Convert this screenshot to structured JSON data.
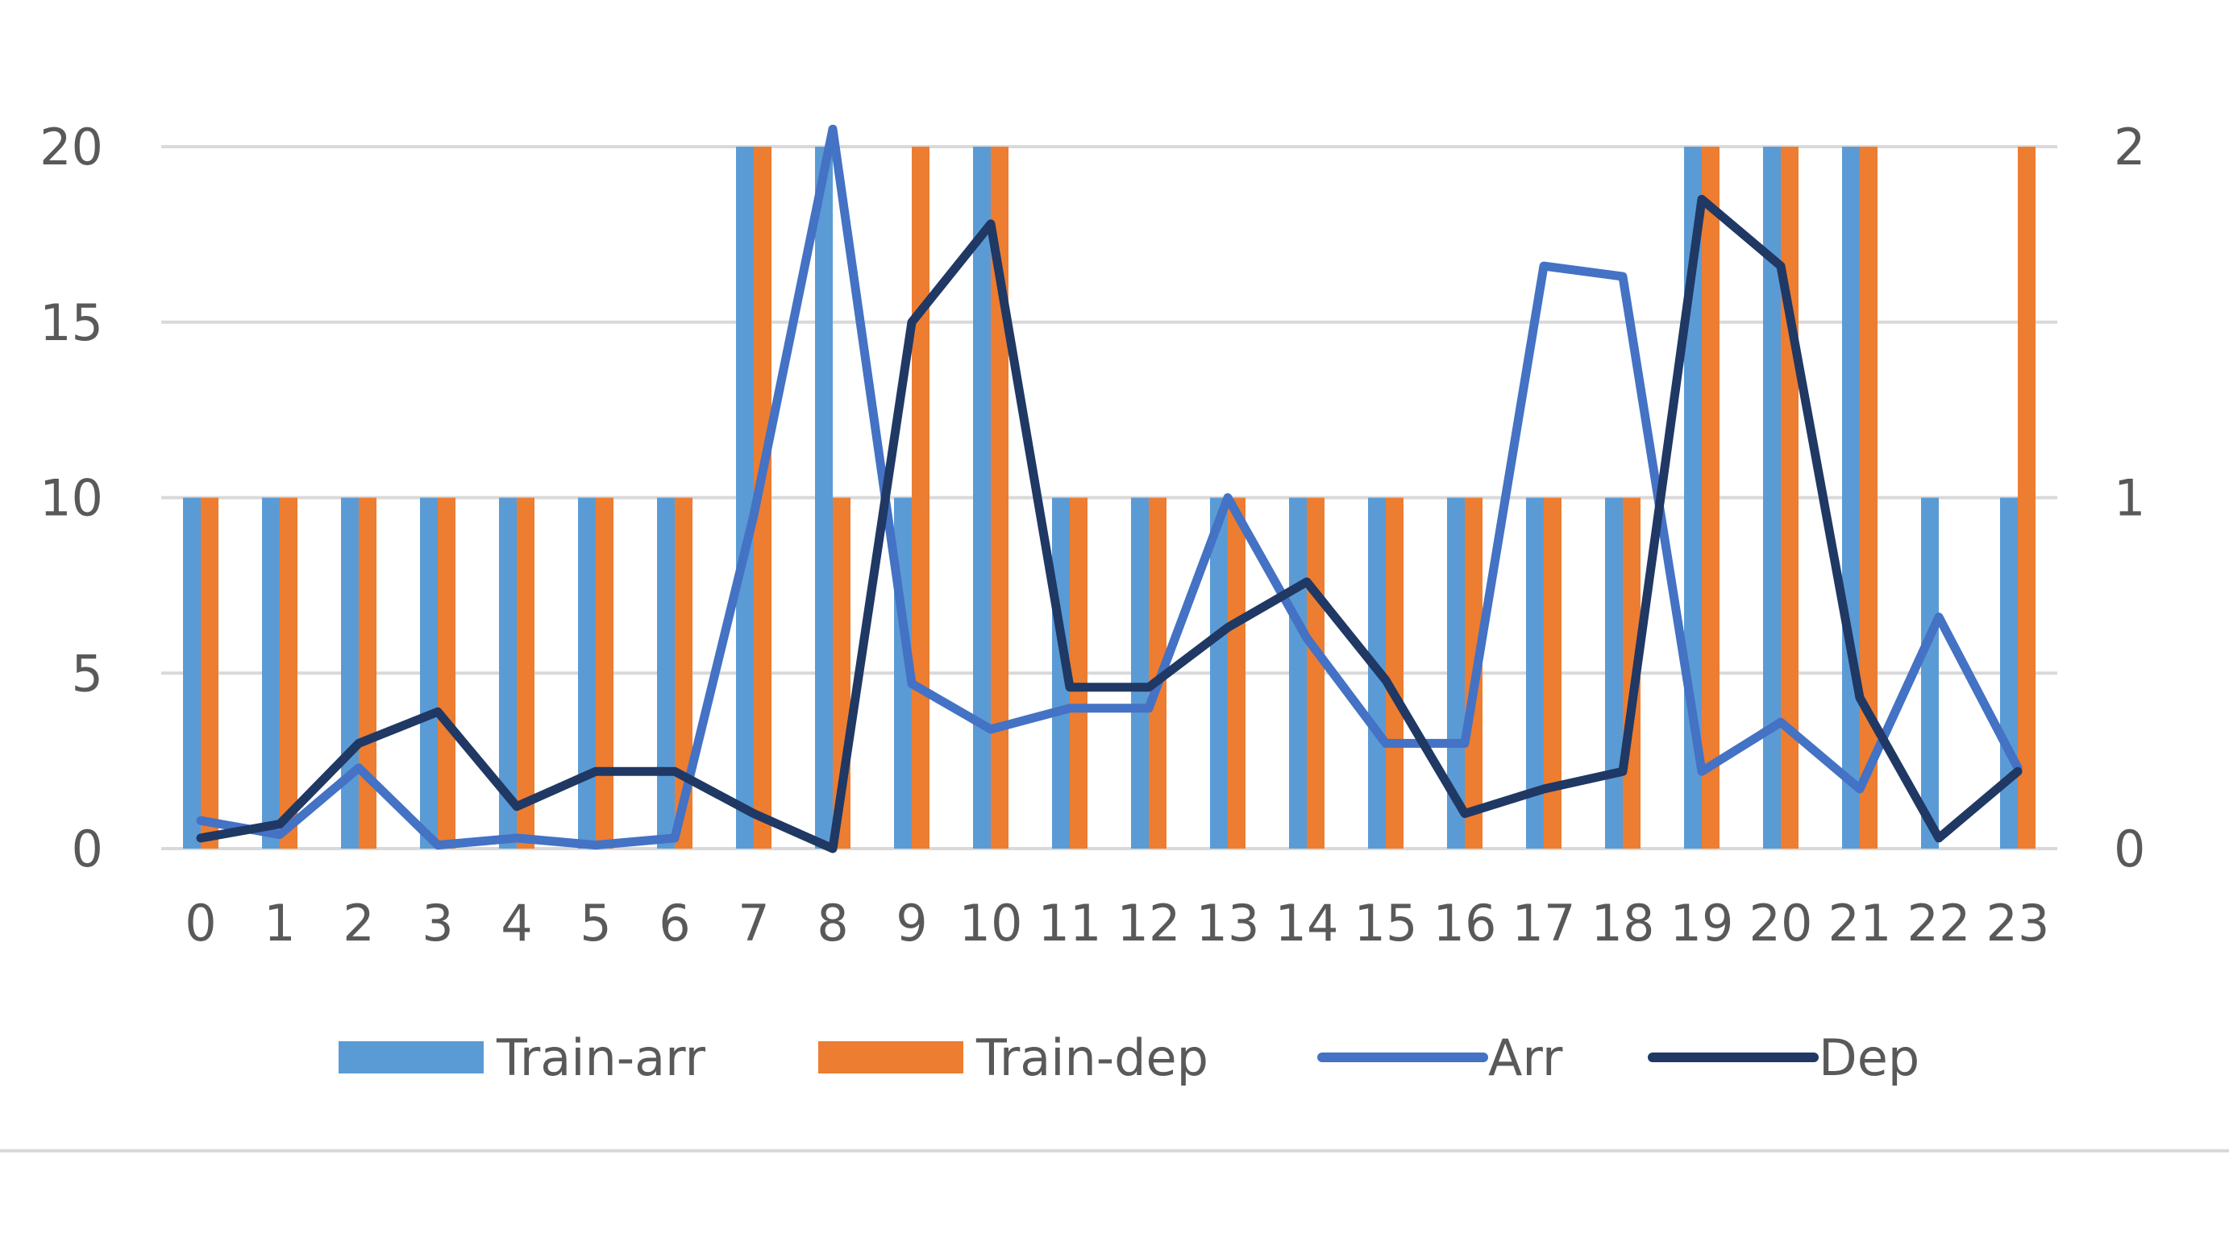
{
  "chart_data": {
    "type": "bar",
    "categories": [
      "0",
      "1",
      "2",
      "3",
      "4",
      "5",
      "6",
      "7",
      "8",
      "9",
      "10",
      "11",
      "12",
      "13",
      "14",
      "15",
      "16",
      "17",
      "18",
      "19",
      "20",
      "21",
      "22",
      "23"
    ],
    "y_left": {
      "ticks": [
        "0",
        "5",
        "10",
        "15",
        "20"
      ],
      "ylim": [
        0,
        20
      ]
    },
    "y_right": {
      "ticks": [
        "0",
        "1",
        "2"
      ],
      "ylim": [
        0,
        2
      ]
    },
    "grid": true,
    "legend_position": "bottom",
    "series": [
      {
        "name": "Train-arr",
        "kind": "bar",
        "axis": "left",
        "color": "#5B9BD5",
        "values": [
          10,
          10,
          10,
          10,
          10,
          10,
          10,
          20,
          20,
          10,
          20,
          10,
          10,
          10,
          10,
          10,
          10,
          10,
          10,
          20,
          20,
          20,
          10,
          10
        ]
      },
      {
        "name": "Train-dep",
        "kind": "bar",
        "axis": "left",
        "color": "#ED7D31",
        "values": [
          10,
          10,
          10,
          10,
          10,
          10,
          10,
          20,
          10,
          20,
          20,
          10,
          10,
          10,
          10,
          10,
          10,
          10,
          10,
          20,
          20,
          20,
          0,
          20
        ]
      },
      {
        "name": "Arr",
        "kind": "line",
        "axis": "right",
        "color": "#4472C4",
        "values": [
          0.08,
          0.04,
          0.23,
          0.01,
          0.03,
          0.01,
          0.03,
          0.95,
          2.05,
          0.47,
          0.34,
          0.4,
          0.4,
          1.0,
          0.6,
          0.3,
          0.3,
          1.66,
          1.63,
          0.22,
          0.36,
          0.17,
          0.66,
          0.23
        ]
      },
      {
        "name": "Dep",
        "kind": "line",
        "axis": "right",
        "color": "#203864",
        "values": [
          0.03,
          0.07,
          0.3,
          0.39,
          0.12,
          0.22,
          0.22,
          0.1,
          0.0,
          1.5,
          1.78,
          0.46,
          0.46,
          0.63,
          0.76,
          0.48,
          0.1,
          0.17,
          0.22,
          1.85,
          1.66,
          0.43,
          0.03,
          0.22
        ]
      }
    ]
  }
}
